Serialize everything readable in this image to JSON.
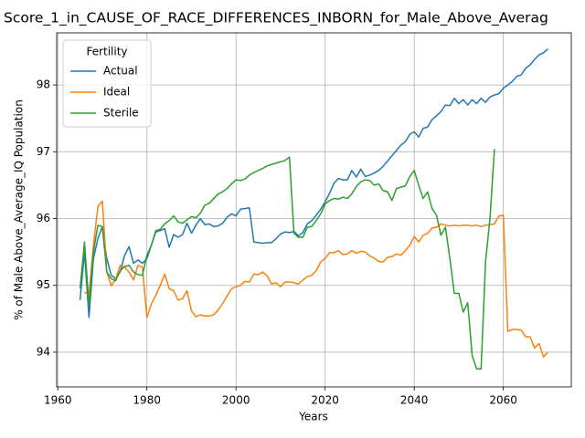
{
  "chart_data": {
    "type": "line",
    "title": "Score_1_in_CAUSE_OF_RACE_DIFFERENCES_INBORN_for_Male_Above_Averag",
    "xlabel": "Years",
    "ylabel": "% of Male Above_Average_IQ Population",
    "legend_title": "Fertility",
    "legend": "upper left",
    "grid": true,
    "x": [
      1965,
      1966,
      1967,
      1968,
      1969,
      1970,
      1971,
      1972,
      1973,
      1974,
      1975,
      1976,
      1977,
      1978,
      1979,
      1980,
      1981,
      1982,
      1983,
      1984,
      1985,
      1986,
      1987,
      1988,
      1989,
      1990,
      1991,
      1992,
      1993,
      1994,
      1995,
      1996,
      1997,
      1998,
      1999,
      2000,
      2001,
      2002,
      2003,
      2004,
      2005,
      2006,
      2007,
      2008,
      2009,
      2010,
      2011,
      2012,
      2013,
      2014,
      2015,
      2016,
      2017,
      2018,
      2019,
      2020,
      2021,
      2022,
      2023,
      2024,
      2025,
      2026,
      2027,
      2028,
      2029,
      2030,
      2031,
      2032,
      2033,
      2034,
      2035,
      2036,
      2037,
      2038,
      2039,
      2040,
      2041,
      2042,
      2043,
      2044,
      2045,
      2046,
      2047,
      2048,
      2049,
      2050,
      2051,
      2052,
      2053,
      2054,
      2055,
      2056,
      2057,
      2058,
      2059,
      2060,
      2061,
      2062,
      2063,
      2064,
      2065,
      2066,
      2067,
      2068,
      2069,
      2070
    ],
    "series": [
      {
        "name": "Actual",
        "color": "#1f77b4",
        "values": [
          94.78,
          95.5,
          94.52,
          95.4,
          95.7,
          95.88,
          95.4,
          95.15,
          95.1,
          95.2,
          95.45,
          95.58,
          95.33,
          95.38,
          95.33,
          95.4,
          95.6,
          95.8,
          95.82,
          95.85,
          95.57,
          95.76,
          95.72,
          95.76,
          95.93,
          95.78,
          95.9,
          96.0,
          95.91,
          95.92,
          95.88,
          95.89,
          95.93,
          96.02,
          96.07,
          96.04,
          96.14,
          96.15,
          96.16,
          95.65,
          95.64,
          95.63,
          95.64,
          95.64,
          95.7,
          95.77,
          95.8,
          95.79,
          95.81,
          95.74,
          95.79,
          95.92,
          95.97,
          96.05,
          96.14,
          96.25,
          96.38,
          96.53,
          96.6,
          96.58,
          96.58,
          96.72,
          96.62,
          96.74,
          96.63,
          96.65,
          96.68,
          96.72,
          96.78,
          96.86,
          96.94,
          97.02,
          97.1,
          97.15,
          97.26,
          97.3,
          97.22,
          97.35,
          97.37,
          97.48,
          97.54,
          97.6,
          97.7,
          97.69,
          97.8,
          97.72,
          97.78,
          97.7,
          97.78,
          97.72,
          97.8,
          97.74,
          97.82,
          97.85,
          97.87,
          97.95,
          98.0,
          98.05,
          98.13,
          98.15,
          98.25,
          98.3,
          98.38,
          98.45,
          98.48,
          98.54
        ]
      },
      {
        "name": "Ideal",
        "color": "#ff7f0e",
        "values": [
          null,
          94.9,
          94.85,
          95.6,
          96.18,
          96.26,
          95.2,
          94.99,
          95.1,
          95.3,
          95.27,
          95.2,
          95.08,
          95.3,
          95.27,
          94.52,
          94.72,
          94.85,
          95.0,
          95.17,
          94.95,
          94.92,
          94.78,
          94.8,
          94.92,
          94.62,
          94.53,
          94.56,
          94.54,
          94.54,
          94.56,
          94.63,
          94.73,
          94.84,
          94.95,
          94.98,
          95.0,
          95.06,
          95.05,
          95.17,
          95.16,
          95.2,
          95.14,
          95.02,
          95.04,
          94.98,
          95.05,
          95.05,
          95.04,
          95.02,
          95.08,
          95.13,
          95.15,
          95.22,
          95.35,
          95.4,
          95.49,
          95.49,
          95.52,
          95.46,
          95.47,
          95.52,
          95.48,
          95.51,
          95.5,
          95.44,
          95.41,
          95.36,
          95.35,
          95.42,
          95.43,
          95.47,
          95.45,
          95.52,
          95.6,
          95.73,
          95.65,
          95.75,
          95.78,
          95.86,
          95.87,
          95.92,
          95.9,
          95.89,
          95.9,
          95.89,
          95.9,
          95.9,
          95.89,
          95.9,
          95.88,
          95.9,
          95.91,
          95.92,
          96.04,
          96.05,
          94.31,
          94.34,
          94.34,
          94.33,
          94.23,
          94.23,
          94.06,
          94.13,
          93.93,
          94.0
        ]
      },
      {
        "name": "Sterile",
        "color": "#2ca02c",
        "values": [
          94.95,
          95.65,
          94.7,
          95.5,
          95.9,
          95.88,
          95.2,
          95.1,
          95.07,
          95.22,
          95.28,
          95.3,
          95.2,
          95.16,
          95.15,
          95.45,
          95.6,
          95.82,
          95.84,
          95.92,
          95.97,
          96.04,
          95.95,
          95.93,
          95.98,
          96.03,
          96.01,
          96.08,
          96.2,
          96.23,
          96.3,
          96.37,
          96.4,
          96.45,
          96.52,
          96.58,
          96.57,
          96.59,
          96.65,
          96.69,
          96.72,
          96.75,
          96.79,
          96.81,
          96.83,
          96.85,
          96.87,
          96.92,
          95.78,
          95.72,
          95.72,
          95.87,
          95.88,
          95.97,
          96.07,
          96.22,
          96.27,
          96.3,
          96.29,
          96.32,
          96.3,
          96.37,
          96.48,
          96.55,
          96.58,
          96.57,
          96.5,
          96.52,
          96.42,
          96.4,
          96.27,
          96.45,
          96.47,
          96.49,
          96.63,
          96.72,
          96.5,
          96.3,
          96.4,
          96.15,
          96.05,
          95.75,
          95.87,
          95.4,
          94.88,
          94.88,
          94.6,
          94.74,
          93.95,
          93.75,
          93.75,
          95.35,
          96.0,
          97.04,
          null,
          null,
          null,
          null,
          null,
          null,
          null,
          null,
          null,
          null,
          null,
          null
        ]
      }
    ],
    "xlim": [
      1959.75,
      2075.25
    ],
    "xticks": [
      1960,
      1980,
      2000,
      2020,
      2040,
      2060
    ],
    "ylim": [
      93.48,
      98.78
    ],
    "yticks": [
      94,
      95,
      96,
      97,
      98
    ]
  }
}
